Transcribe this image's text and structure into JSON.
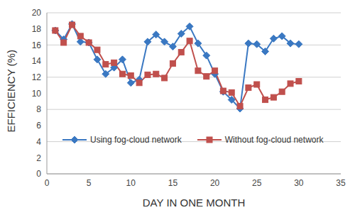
{
  "chart_data": {
    "type": "line",
    "x_label": "DAY IN ONE MONTH",
    "y_label": "EFFICIENCY (%)",
    "x": [
      1,
      2,
      3,
      4,
      5,
      6,
      7,
      8,
      9,
      10,
      11,
      12,
      13,
      14,
      15,
      16,
      17,
      18,
      19,
      20,
      21,
      22,
      23,
      24,
      25,
      26,
      27,
      28,
      29,
      30
    ],
    "series": [
      {
        "name": "Using fog-cloud network",
        "color": "#3a78c2",
        "marker": "diamond",
        "values": [
          17.8,
          16.7,
          18.6,
          16.4,
          16.3,
          14.2,
          12.4,
          13.2,
          14.2,
          11.3,
          11.7,
          16.4,
          17.3,
          16.4,
          15.8,
          17.4,
          18.3,
          16.2,
          14.7,
          12.4,
          10.2,
          9.2,
          8.1,
          16.2,
          16.1,
          15.2,
          16.8,
          17.1,
          16.2,
          16.1
        ]
      },
      {
        "name": "Without fog-cloud network",
        "color": "#c0504d",
        "marker": "square",
        "values": [
          17.8,
          16.3,
          18.5,
          17.1,
          16.3,
          15.4,
          13.6,
          13.8,
          12.4,
          12.2,
          11.3,
          12.3,
          12.4,
          11.9,
          13.7,
          15.1,
          16.5,
          12.8,
          12.1,
          12.8,
          10.3,
          10.1,
          8.4,
          10.7,
          11.1,
          9.2,
          9.5,
          10.2,
          11.2,
          11.5
        ]
      }
    ],
    "xlim": [
      0,
      35
    ],
    "xticks": [
      0,
      5,
      10,
      15,
      20,
      25,
      30,
      35
    ],
    "ylim": [
      0,
      20
    ],
    "yticks": [
      0,
      2,
      4,
      6,
      8,
      10,
      12,
      14,
      16,
      18,
      20
    ],
    "grid": true,
    "legend": "bottom"
  }
}
